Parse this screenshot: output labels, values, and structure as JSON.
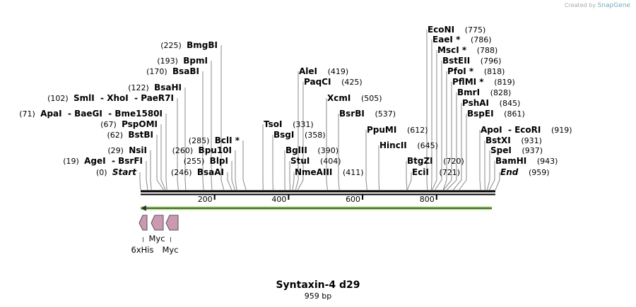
{
  "credit": {
    "prefix": "Created by",
    "brand": "SnapGene"
  },
  "sequence": {
    "name": "Syntaxin-4 d29",
    "length_label": "959 bp",
    "length": 959
  },
  "ticks": [
    "200",
    "400",
    "600",
    "800"
  ],
  "tick_values": [
    200,
    400,
    600,
    800
  ],
  "enzymes": [
    {
      "name": "BmgBI",
      "pos": "(225)",
      "bp": 225
    },
    {
      "name": "BpmI",
      "pos": "(193)",
      "bp": 193
    },
    {
      "name": "BsaBI",
      "pos": "(170)",
      "bp": 170
    },
    {
      "name": "BsaHI",
      "pos": "(122)",
      "bp": 122
    },
    {
      "name": "SmlI  - XhoI  - PaeR7I",
      "pos": "(102)",
      "bp": 102
    },
    {
      "name": "ApaI  - BaeGI  - Bme1580I",
      "pos": "(71)",
      "bp": 71
    },
    {
      "name": "PspOMI",
      "pos": "(67)",
      "bp": 67
    },
    {
      "name": "BstBI",
      "pos": "(62)",
      "bp": 62
    },
    {
      "name": "BclI *",
      "pos": "(285)",
      "bp": 285
    },
    {
      "name": "NsiI",
      "pos": "(29)",
      "bp": 29
    },
    {
      "name": "Bpu10I",
      "pos": "(260)",
      "bp": 260
    },
    {
      "name": "AgeI  - BsrFI",
      "pos": "(19)",
      "bp": 19
    },
    {
      "name": "BlpI",
      "pos": "(255)",
      "bp": 255
    },
    {
      "name": "Start",
      "pos": "(0)",
      "bp": 0
    },
    {
      "name": "BsaAI",
      "pos": "(246)",
      "bp": 246
    },
    {
      "name": "TsoI",
      "pos": "(331)",
      "bp": 331
    },
    {
      "name": "BsgI",
      "pos": "(358)",
      "bp": 358
    },
    {
      "name": "BglII",
      "pos": "(390)",
      "bp": 390
    },
    {
      "name": "StuI",
      "pos": "(404)",
      "bp": 404
    },
    {
      "name": "NmeAIII",
      "pos": "(411)",
      "bp": 411
    },
    {
      "name": "AleI",
      "pos": "(419)",
      "bp": 419
    },
    {
      "name": "PaqCI",
      "pos": "(425)",
      "bp": 425
    },
    {
      "name": "XcmI",
      "pos": "(505)",
      "bp": 505
    },
    {
      "name": "BsrBI",
      "pos": "(537)",
      "bp": 537
    },
    {
      "name": "PpuMI",
      "pos": "(612)",
      "bp": 612
    },
    {
      "name": "HincII",
      "pos": "(645)",
      "bp": 645
    },
    {
      "name": "BtgZI",
      "pos": "(720)",
      "bp": 720
    },
    {
      "name": "EciI",
      "pos": "(721)",
      "bp": 721
    },
    {
      "name": "EcoNI",
      "pos": "(775)",
      "bp": 775
    },
    {
      "name": "EaeI *",
      "pos": "(786)",
      "bp": 786
    },
    {
      "name": "MscI *",
      "pos": "(788)",
      "bp": 788
    },
    {
      "name": "BstEII",
      "pos": "(796)",
      "bp": 796
    },
    {
      "name": "PfoI *",
      "pos": "(818)",
      "bp": 818
    },
    {
      "name": "PflMI *",
      "pos": "(819)",
      "bp": 819
    },
    {
      "name": "BmrI",
      "pos": "(828)",
      "bp": 828
    },
    {
      "name": "PshAI",
      "pos": "(845)",
      "bp": 845
    },
    {
      "name": "BspEI",
      "pos": "(861)",
      "bp": 861
    },
    {
      "name": "ApoI  - EcoRI",
      "pos": "(919)",
      "bp": 919
    },
    {
      "name": "BstXI",
      "pos": "(931)",
      "bp": 931
    },
    {
      "name": "SpeI",
      "pos": "(937)",
      "bp": 937
    },
    {
      "name": "BamHI",
      "pos": "(943)",
      "bp": 943
    },
    {
      "name": "End",
      "pos": "(959)",
      "bp": 959
    }
  ],
  "features": [
    {
      "name": "6xHis",
      "start": 0,
      "end": 20,
      "color": "#cc99b2"
    },
    {
      "name": "Myc",
      "start": 29,
      "end": 59,
      "color": "#cc99b2"
    },
    {
      "name": "Myc",
      "start": 70,
      "end": 100,
      "color": "#cc99b2"
    }
  ],
  "orf": {
    "color": "#a6e07a",
    "direction": "reverse"
  }
}
